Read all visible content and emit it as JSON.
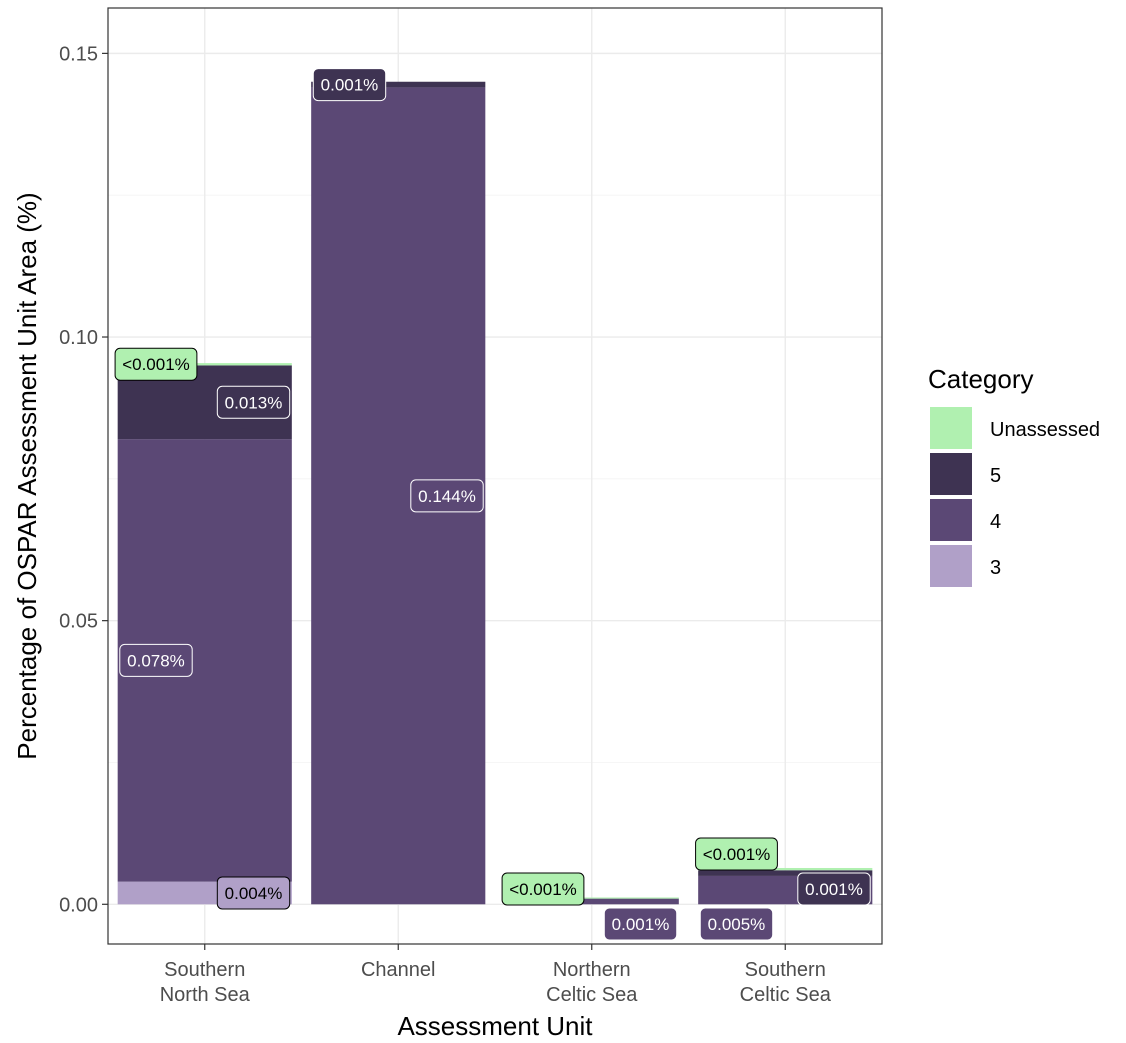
{
  "chart_data": {
    "type": "bar",
    "stacked": true,
    "categories": [
      "Southern\nNorth Sea",
      "Channel",
      "Northern\nCeltic Sea",
      "Southern\nCeltic Sea"
    ],
    "series": [
      {
        "name": "3",
        "color": "#b0a0c8",
        "values": [
          0.004,
          0,
          0,
          0
        ]
      },
      {
        "name": "4",
        "color": "#5b4875",
        "values": [
          0.078,
          0.144,
          0.001,
          0.005
        ]
      },
      {
        "name": "5",
        "color": "#3e3352",
        "values": [
          0.013,
          0.001,
          0,
          0.001
        ]
      },
      {
        "name": "Unassessed",
        "color": "#b0f0b0",
        "values": [
          0.0004,
          0,
          0.0002,
          0.0004
        ]
      }
    ],
    "labels": [
      {
        "category": 0,
        "series": "Unassessed",
        "text": "<0.001%"
      },
      {
        "category": 0,
        "series": "5",
        "text": "0.013%"
      },
      {
        "category": 0,
        "series": "4",
        "text": "0.078%"
      },
      {
        "category": 0,
        "series": "3",
        "text": "0.004%"
      },
      {
        "category": 1,
        "series": "5",
        "text": "0.001%"
      },
      {
        "category": 1,
        "series": "4",
        "text": "0.144%"
      },
      {
        "category": 2,
        "series": "Unassessed",
        "text": "<0.001%"
      },
      {
        "category": 2,
        "series": "4",
        "text": "0.001%"
      },
      {
        "category": 3,
        "series": "Unassessed",
        "text": "<0.001%"
      },
      {
        "category": 3,
        "series": "5",
        "text": "0.001%"
      },
      {
        "category": 3,
        "series": "4",
        "text": "0.005%"
      }
    ],
    "yticks": [
      "0.00",
      "0.05",
      "0.10",
      "0.15"
    ],
    "ytick_values": [
      0,
      0.05,
      0.1,
      0.15
    ],
    "ylim": [
      -0.007,
      0.158
    ],
    "xlabel": "Assessment Unit",
    "ylabel": "Percentage of OSPAR Assessment Unit Area (%)",
    "legend": {
      "title": "Category",
      "position": "right",
      "items": [
        {
          "label": "Unassessed",
          "color": "#b0f0b0"
        },
        {
          "label": "5",
          "color": "#3e3352"
        },
        {
          "label": "4",
          "color": "#5b4875"
        },
        {
          "label": "3",
          "color": "#b0a0c8"
        }
      ]
    },
    "grid": true
  }
}
